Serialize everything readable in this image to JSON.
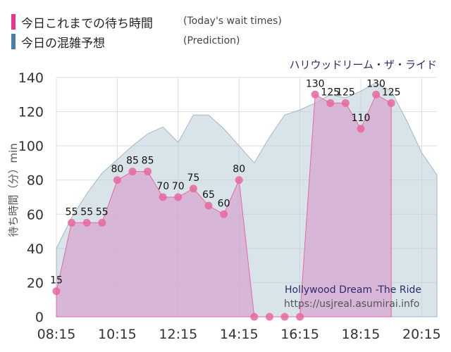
{
  "legend": {
    "today_label": "今日これまでの待ち時間",
    "today_en": "(Today's wait times)",
    "today_color": "#e8338f",
    "prediction_label": "今日の混雑予想",
    "prediction_en": "(Prediction)",
    "prediction_color": "#4a7fad"
  },
  "ride_name_jp": "ハリウッドリーム・ザ・ライド",
  "ride_name_en": "Hollywood Dream -The Ride",
  "source_url": "https://usjreal.asumirai.info",
  "chart_data": {
    "type": "area",
    "ylabel": "待ち時間（分）min",
    "ylim": [
      0,
      140
    ],
    "yticks": [
      0,
      20,
      40,
      60,
      80,
      100,
      120,
      140
    ],
    "xticks": [
      "08:15",
      "10:15",
      "12:15",
      "14:15",
      "16:15",
      "18:15",
      "20:15"
    ],
    "x_unit_minutes": 15,
    "grid": true,
    "series": [
      {
        "key": "today",
        "x": [
          "08:15",
          "08:45",
          "09:15",
          "09:45",
          "10:15",
          "10:45",
          "11:15",
          "11:45",
          "12:15",
          "12:45",
          "13:15",
          "13:45",
          "14:15",
          "14:45",
          "15:15",
          "15:45",
          "16:15",
          "16:45",
          "17:15",
          "17:45",
          "18:15",
          "18:45",
          "19:15"
        ],
        "values": [
          15,
          55,
          55,
          55,
          80,
          85,
          85,
          70,
          70,
          75,
          65,
          60,
          80,
          0,
          0,
          0,
          0,
          130,
          125,
          125,
          110,
          130,
          125
        ],
        "show_labels": [
          true,
          true,
          true,
          true,
          true,
          true,
          true,
          true,
          true,
          true,
          true,
          true,
          true,
          false,
          false,
          false,
          false,
          true,
          true,
          true,
          true,
          true,
          true
        ]
      },
      {
        "key": "prediction",
        "x": [
          "08:15",
          "08:45",
          "09:15",
          "09:45",
          "10:15",
          "10:45",
          "11:15",
          "11:45",
          "12:15",
          "12:45",
          "13:15",
          "13:45",
          "14:15",
          "14:45",
          "15:15",
          "15:45",
          "16:15",
          "16:45",
          "17:15",
          "17:45",
          "18:15",
          "18:45",
          "19:15",
          "19:45",
          "20:15",
          "20:45"
        ],
        "values": [
          40,
          58,
          72,
          84,
          92,
          100,
          107,
          111,
          102,
          118,
          118,
          110,
          100,
          90,
          105,
          118,
          121,
          125,
          130,
          128,
          132,
          137,
          132,
          115,
          96,
          83
        ]
      }
    ]
  }
}
